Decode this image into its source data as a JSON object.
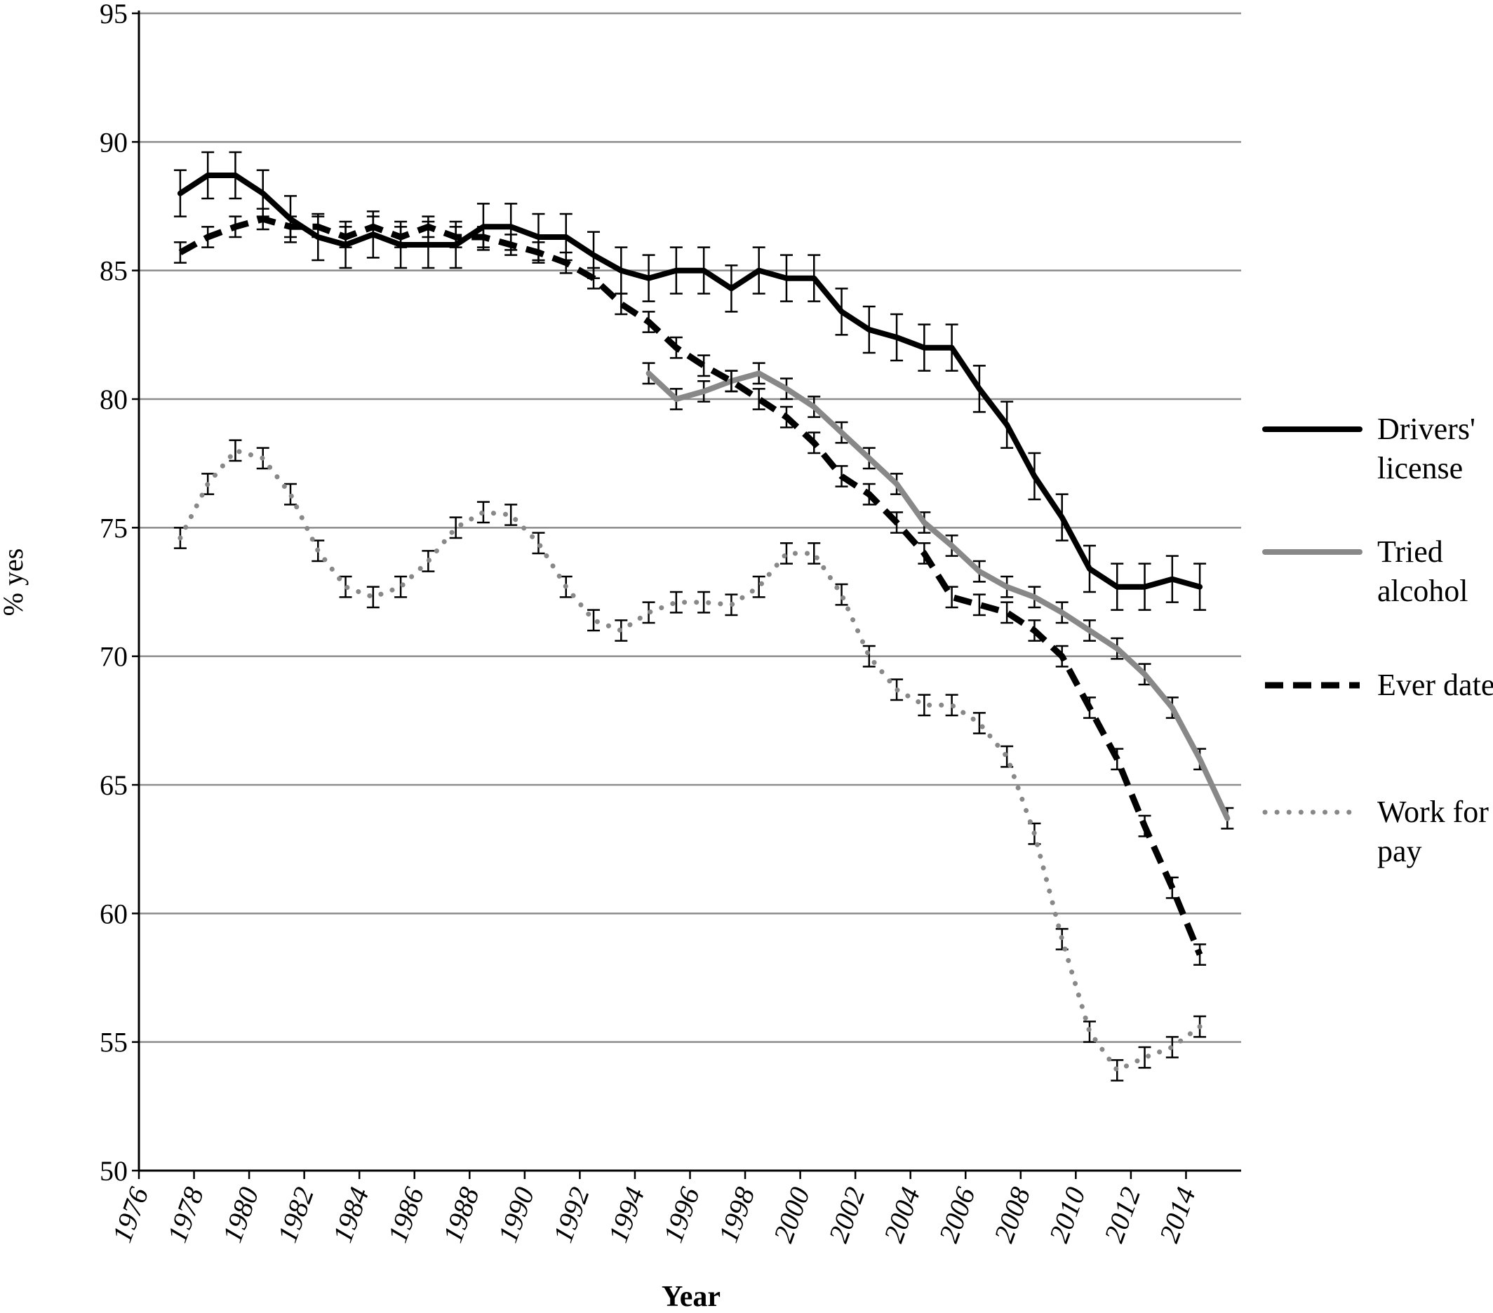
{
  "chart_data": {
    "type": "line",
    "title": "",
    "xlabel": "Year",
    "ylabel": "% yes",
    "xlim": [
      1976,
      2016
    ],
    "ylim": [
      50,
      95
    ],
    "x_ticks": [
      "1976",
      "1978",
      "1980",
      "1982",
      "1984",
      "1986",
      "1988",
      "1990",
      "1992",
      "1994",
      "1996",
      "1998",
      "2000",
      "2002",
      "2004",
      "2006",
      "2008",
      "2010",
      "2012",
      "2014"
    ],
    "y_ticks": [
      "50",
      "55",
      "60",
      "65",
      "70",
      "75",
      "80",
      "85",
      "90",
      "95"
    ],
    "grid": "horizontal",
    "legend_position": "right",
    "series": [
      {
        "name": "Drivers' license",
        "color": "#000000",
        "style": "solid",
        "x": [
          1977.5,
          1978.5,
          1979.5,
          1980.5,
          1981.5,
          1982.5,
          1983.5,
          1984.5,
          1985.5,
          1986.5,
          1987.5,
          1988.5,
          1989.5,
          1990.5,
          1991.5,
          1992.5,
          1993.5,
          1994.5,
          1995.5,
          1996.5,
          1997.5,
          1998.5,
          1999.5,
          2000.5,
          2001.5,
          2002.5,
          2003.5,
          2004.5,
          2005.5,
          2006.5,
          2007.5,
          2008.5,
          2009.5,
          2010.5,
          2011.5,
          2012.5,
          2013.5,
          2014.5
        ],
        "values": [
          88.0,
          88.7,
          88.7,
          88.0,
          87.0,
          86.3,
          86.0,
          86.4,
          86.0,
          86.0,
          86.0,
          86.7,
          86.7,
          86.3,
          86.3,
          85.6,
          85.0,
          84.7,
          85.0,
          85.0,
          84.3,
          85.0,
          84.7,
          84.7,
          83.4,
          82.7,
          82.4,
          82.0,
          82.0,
          80.4,
          79.0,
          77.0,
          75.4,
          73.4,
          72.7,
          72.7,
          73.0,
          72.7
        ],
        "err": [
          0.9,
          0.9,
          0.9,
          0.9,
          0.9,
          0.9,
          0.9,
          0.9,
          0.9,
          0.9,
          0.9,
          0.9,
          0.9,
          0.9,
          0.9,
          0.9,
          0.9,
          0.9,
          0.9,
          0.9,
          0.9,
          0.9,
          0.9,
          0.9,
          0.9,
          0.9,
          0.9,
          0.9,
          0.9,
          0.9,
          0.9,
          0.9,
          0.9,
          0.9,
          0.9,
          0.9,
          0.9,
          0.9
        ]
      },
      {
        "name": "Tried alcohol",
        "color": "#888888",
        "style": "solid",
        "x": [
          1994.5,
          1995.5,
          1996.5,
          1997.5,
          1998.5,
          1999.5,
          2000.5,
          2001.5,
          2002.5,
          2003.5,
          2004.5,
          2005.5,
          2006.5,
          2007.5,
          2008.5,
          2009.5,
          2010.5,
          2011.5,
          2012.5,
          2013.5,
          2014.5,
          2015.5
        ],
        "values": [
          81.0,
          80.0,
          80.3,
          80.7,
          81.0,
          80.4,
          79.7,
          78.7,
          77.7,
          76.7,
          75.2,
          74.3,
          73.3,
          72.7,
          72.3,
          71.7,
          71.0,
          70.3,
          69.3,
          68.0,
          66.0,
          63.7
        ],
        "err": [
          0.4,
          0.4,
          0.4,
          0.4,
          0.4,
          0.4,
          0.4,
          0.4,
          0.4,
          0.4,
          0.4,
          0.4,
          0.4,
          0.4,
          0.4,
          0.4,
          0.4,
          0.4,
          0.4,
          0.4,
          0.4,
          0.4
        ]
      },
      {
        "name": "Ever date",
        "color": "#000000",
        "style": "dashed",
        "x": [
          1977.5,
          1978.5,
          1979.5,
          1980.5,
          1981.5,
          1982.5,
          1983.5,
          1984.5,
          1985.5,
          1986.5,
          1987.5,
          1988.5,
          1989.5,
          1990.5,
          1991.5,
          1992.5,
          1993.5,
          1994.5,
          1995.5,
          1996.5,
          1997.5,
          1998.5,
          1999.5,
          2000.5,
          2001.5,
          2002.5,
          2003.5,
          2004.5,
          2005.5,
          2006.5,
          2007.5,
          2008.5,
          2009.5,
          2010.5,
          2011.5,
          2012.5,
          2013.5,
          2014.5
        ],
        "values": [
          85.7,
          86.3,
          86.7,
          87.0,
          86.7,
          86.7,
          86.3,
          86.7,
          86.3,
          86.7,
          86.3,
          86.3,
          86.0,
          85.7,
          85.3,
          84.7,
          83.7,
          83.0,
          82.0,
          81.3,
          80.7,
          80.0,
          79.3,
          78.3,
          77.0,
          76.3,
          75.2,
          74.0,
          72.3,
          72.0,
          71.7,
          71.0,
          70.0,
          68.0,
          66.0,
          63.4,
          61.0,
          58.4
        ],
        "err": [
          0.4,
          0.4,
          0.4,
          0.4,
          0.4,
          0.4,
          0.4,
          0.4,
          0.4,
          0.4,
          0.4,
          0.4,
          0.4,
          0.4,
          0.4,
          0.4,
          0.4,
          0.4,
          0.4,
          0.4,
          0.4,
          0.4,
          0.4,
          0.4,
          0.4,
          0.4,
          0.4,
          0.4,
          0.4,
          0.4,
          0.4,
          0.4,
          0.4,
          0.4,
          0.4,
          0.4,
          0.4,
          0.4
        ]
      },
      {
        "name": "Work for pay",
        "color": "#888888",
        "style": "dotted",
        "x": [
          1977.5,
          1978.5,
          1979.5,
          1980.5,
          1981.5,
          1982.5,
          1983.5,
          1984.5,
          1985.5,
          1986.5,
          1987.5,
          1988.5,
          1989.5,
          1990.5,
          1991.5,
          1992.5,
          1993.5,
          1994.5,
          1995.5,
          1996.5,
          1997.5,
          1998.5,
          1999.5,
          2000.5,
          2001.5,
          2002.5,
          2003.5,
          2004.5,
          2005.5,
          2006.5,
          2007.5,
          2008.5,
          2009.5,
          2010.5,
          2011.5,
          2012.5,
          2013.5,
          2014.5
        ],
        "values": [
          74.6,
          76.7,
          78.0,
          77.7,
          76.3,
          74.1,
          72.7,
          72.3,
          72.7,
          73.7,
          75.0,
          75.6,
          75.5,
          74.4,
          72.7,
          71.4,
          71.0,
          71.7,
          72.1,
          72.1,
          72.0,
          72.7,
          74.0,
          74.0,
          72.4,
          70.0,
          68.7,
          68.1,
          68.1,
          67.4,
          66.1,
          63.1,
          59.0,
          55.4,
          53.9,
          54.4,
          54.8,
          55.6
        ],
        "err": [
          0.4,
          0.4,
          0.4,
          0.4,
          0.4,
          0.4,
          0.4,
          0.4,
          0.4,
          0.4,
          0.4,
          0.4,
          0.4,
          0.4,
          0.4,
          0.4,
          0.4,
          0.4,
          0.4,
          0.4,
          0.4,
          0.4,
          0.4,
          0.4,
          0.4,
          0.4,
          0.4,
          0.4,
          0.4,
          0.4,
          0.4,
          0.4,
          0.4,
          0.4,
          0.4,
          0.4,
          0.4,
          0.4
        ]
      }
    ]
  },
  "legend": {
    "items": [
      {
        "lines": [
          "Drivers'",
          "license"
        ]
      },
      {
        "lines": [
          "Tried",
          "alcohol"
        ]
      },
      {
        "lines": [
          "Ever date"
        ]
      },
      {
        "lines": [
          "Work for",
          "pay"
        ]
      }
    ]
  }
}
